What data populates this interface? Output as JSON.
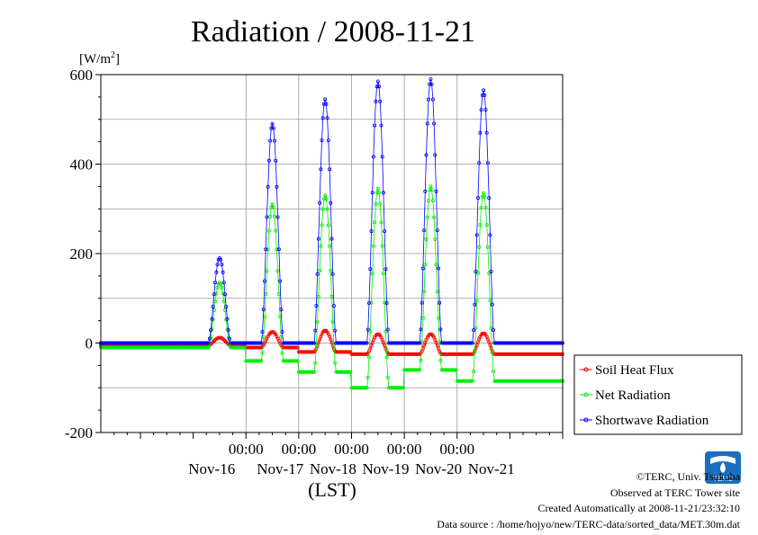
{
  "chart_data": {
    "type": "line",
    "title": "Radiation / 2008-11-21",
    "ylabel_unit_base": "[W/m",
    "ylabel_unit_sup": "2",
    "ylabel_unit_close": "]",
    "xlabel": "(LST)",
    "ylim": [
      -200,
      600
    ],
    "yticks": [
      -200,
      0,
      200,
      400,
      600
    ],
    "xlim_hours": [
      -66,
      144
    ],
    "xticks": [
      {
        "hour": 0,
        "time": "00:00",
        "day": "Nov-17"
      },
      {
        "hour": 24,
        "time": "00:00",
        "day": "Nov-18"
      },
      {
        "hour": 48,
        "time": "00:00",
        "day": "Nov-19"
      },
      {
        "hour": 72,
        "time": "00:00",
        "day": "Nov-20"
      },
      {
        "hour": 96,
        "time": "00:00",
        "day": "Nov-21"
      }
    ],
    "first_day_label": "Nov-16",
    "grid": true,
    "legend_position": "right",
    "series": [
      {
        "name": "Soil Heat Flux",
        "color": "#ff0000",
        "days": [
          {
            "d": "2008-11-16",
            "night": -5,
            "peak": 12,
            "peak_hour": 12
          },
          {
            "d": "2008-11-17",
            "night": -10,
            "peak": 25,
            "peak_hour": 12.5
          },
          {
            "d": "2008-11-18",
            "night": -20,
            "peak": 28,
            "peak_hour": 12.5
          },
          {
            "d": "2008-11-19",
            "night": -25,
            "peak": 20,
            "peak_hour": 12.5
          },
          {
            "d": "2008-11-20",
            "night": -25,
            "peak": 20,
            "peak_hour": 12.5
          },
          {
            "d": "2008-11-21",
            "night": -25,
            "peak": 22,
            "peak_hour": 12.5
          }
        ]
      },
      {
        "name": "Net Radiation",
        "color": "#00ee00",
        "days": [
          {
            "d": "2008-11-16",
            "night": -10,
            "peak": 135,
            "peak_hour": 11.5
          },
          {
            "d": "2008-11-17",
            "night": -40,
            "peak": 310,
            "peak_hour": 11
          },
          {
            "d": "2008-11-18",
            "night": -65,
            "peak": 330,
            "peak_hour": 12.5
          },
          {
            "d": "2008-11-19",
            "night": -100,
            "peak": 345,
            "peak_hour": 12
          },
          {
            "d": "2008-11-20",
            "night": -60,
            "peak": 350,
            "peak_hour": 12
          },
          {
            "d": "2008-11-21",
            "night": -85,
            "peak": 335,
            "peak_hour": 12
          }
        ]
      },
      {
        "name": "Shortwave Radiation",
        "color": "#0000ff",
        "days": [
          {
            "d": "2008-11-16",
            "night": 0,
            "peak": 190,
            "peak_hour": 11.5
          },
          {
            "d": "2008-11-17",
            "night": 0,
            "peak": 490,
            "peak_hour": 11
          },
          {
            "d": "2008-11-18",
            "night": 0,
            "peak": 545,
            "peak_hour": 12.5
          },
          {
            "d": "2008-11-19",
            "night": 0,
            "peak": 585,
            "peak_hour": 12
          },
          {
            "d": "2008-11-20",
            "night": 0,
            "peak": 590,
            "peak_hour": 12
          },
          {
            "d": "2008-11-21",
            "night": 0,
            "peak": 565,
            "peak_hour": 12
          }
        ]
      }
    ]
  },
  "credits": {
    "copyright": "©TERC, Univ. Tsukuba",
    "observed": "Observed at TERC Tower site",
    "created": "Created Automatically at 2008-11-21/23:32:10",
    "source": "Data source : /home/hojyo/new/TERC-data/sorted_data/MET.30m.dat"
  },
  "logo": {
    "text": "TERC",
    "color": "#1a6fc0"
  }
}
